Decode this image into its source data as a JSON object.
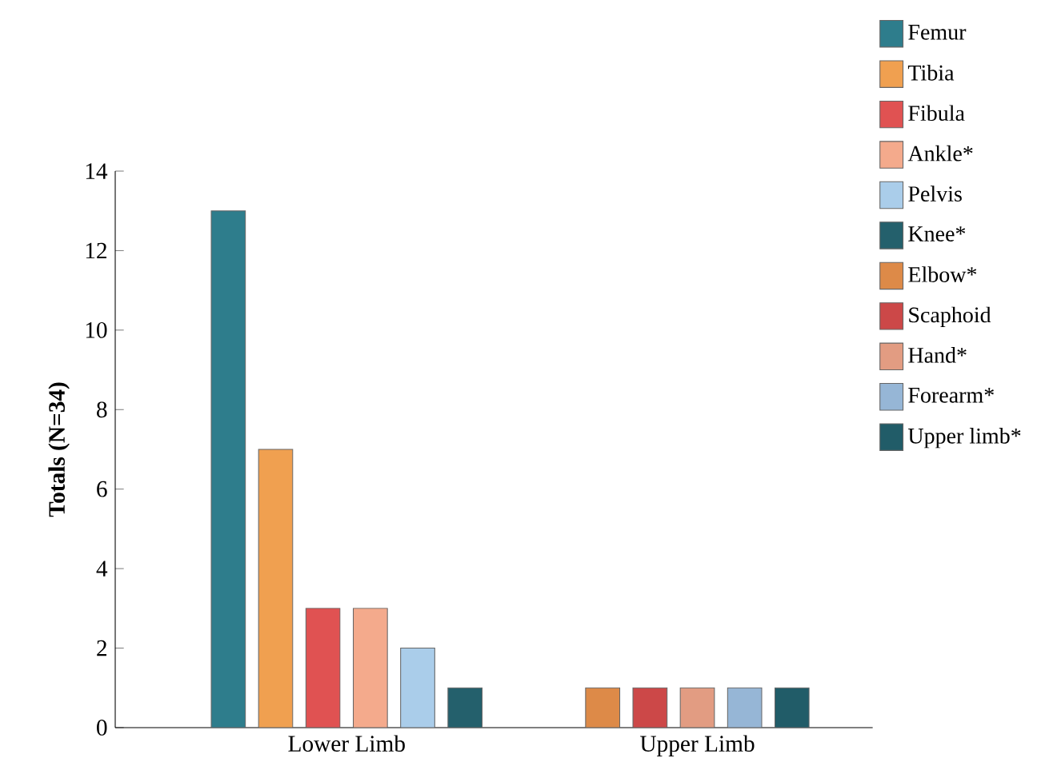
{
  "chart_data": {
    "type": "bar",
    "ylabel": "Totals (N=34)",
    "categories": [
      "Lower Limb",
      "Upper Limb"
    ],
    "series": [
      {
        "name": "Femur",
        "color": "#2e7d8c",
        "values": [
          13,
          null
        ]
      },
      {
        "name": "Tibia",
        "color": "#f0a050",
        "values": [
          7,
          null
        ]
      },
      {
        "name": "Fibula",
        "color": "#e05252",
        "values": [
          3,
          null
        ]
      },
      {
        "name": "Ankle*",
        "color": "#f4aa8c",
        "values": [
          3,
          null
        ]
      },
      {
        "name": "Pelvis",
        "color": "#aacdea",
        "values": [
          2,
          null
        ]
      },
      {
        "name": "Knee*",
        "color": "#24606c",
        "values": [
          1,
          null
        ]
      },
      {
        "name": "Elbow*",
        "color": "#dd8a48",
        "values": [
          null,
          1
        ]
      },
      {
        "name": "Scaphoid",
        "color": "#cc4848",
        "values": [
          null,
          1
        ]
      },
      {
        "name": "Hand*",
        "color": "#e29c82",
        "values": [
          null,
          1
        ]
      },
      {
        "name": "Forearm*",
        "color": "#96b6d6",
        "values": [
          null,
          1
        ]
      },
      {
        "name": "Upper limb*",
        "color": "#215c68",
        "values": [
          null,
          1
        ]
      }
    ],
    "ylim": [
      0,
      14
    ],
    "yticks": [
      0,
      2,
      4,
      6,
      8,
      10,
      12,
      14
    ],
    "grid": false,
    "legend": "right"
  }
}
